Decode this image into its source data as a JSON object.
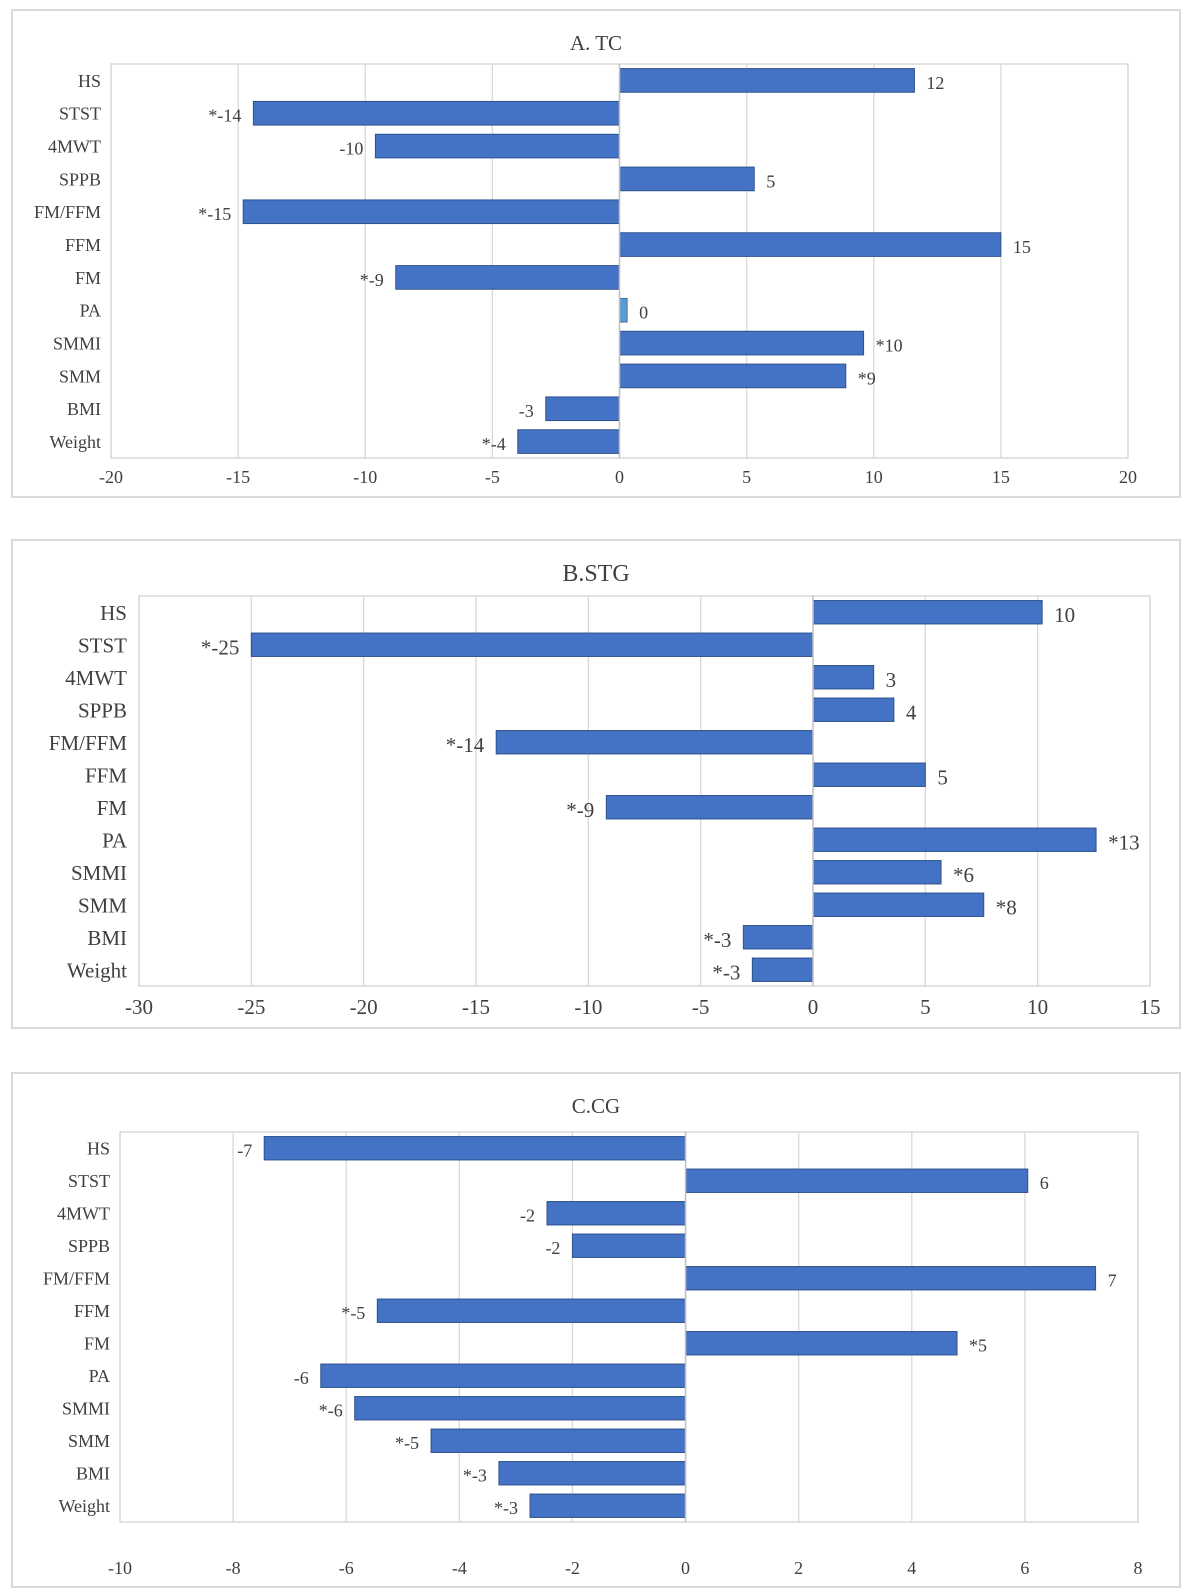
{
  "chart_data": [
    {
      "type": "bar",
      "orientation": "horizontal",
      "title": "A. TC",
      "categories": [
        "HS",
        "STST",
        "4MWT",
        "SPPB",
        "FM/FFM",
        "FFM",
        "FM",
        "PA",
        "SMMI",
        "SMM",
        "BMI",
        "Weight"
      ],
      "values": [
        11.6,
        -14.4,
        -9.6,
        5.3,
        -14.8,
        15.0,
        -8.8,
        0.3,
        9.6,
        8.9,
        -2.9,
        -4.0
      ],
      "data_labels": [
        "12",
        "*-14",
        "-10",
        "5",
        "*-15",
        "15",
        "*-9",
        "0",
        "*10",
        "*9",
        "-3",
        "*-4"
      ],
      "xlim": [
        -20,
        20
      ],
      "xticks": [
        "-20",
        "-15",
        "-10",
        "-5",
        "0",
        "5",
        "10",
        "15",
        "20"
      ],
      "grid": "vertical",
      "color": "#4472c4",
      "highlight_color": "#5b9bd5"
    },
    {
      "type": "bar",
      "orientation": "horizontal",
      "title": "B.STG",
      "categories": [
        "HS",
        "STST",
        "4MWT",
        "SPPB",
        "FM/FFM",
        "FFM",
        "FM",
        "PA",
        "SMMI",
        "SMM",
        "BMI",
        "Weight"
      ],
      "values": [
        10.2,
        -25.0,
        2.7,
        3.6,
        -14.1,
        5.0,
        -9.2,
        12.6,
        5.7,
        7.6,
        -3.1,
        -2.7
      ],
      "data_labels": [
        "10",
        "*-25",
        "3",
        "4",
        "*-14",
        "5",
        "*-9",
        "*13",
        "*6",
        "*8",
        "*-3",
        "*-3"
      ],
      "xlim": [
        -30,
        15
      ],
      "xticks": [
        "-30",
        "-25",
        "-20",
        "-15",
        "-10",
        "-5",
        "0",
        "5",
        "10",
        "15"
      ],
      "grid": "vertical",
      "color": "#4472c4"
    },
    {
      "type": "bar",
      "orientation": "horizontal",
      "title": "C.CG",
      "categories": [
        "HS",
        "STST",
        "4MWT",
        "SPPB",
        "FM/FFM",
        "FFM",
        "FM",
        "PA",
        "SMMI",
        "SMM",
        "BMI",
        "Weight"
      ],
      "values": [
        -7.45,
        6.05,
        -2.45,
        -2.0,
        7.25,
        -5.45,
        4.8,
        -6.45,
        -5.85,
        -4.5,
        -3.3,
        -2.75
      ],
      "data_labels": [
        "-7",
        "6",
        "-2",
        "-2",
        "7",
        "*-5",
        "*5",
        "-6",
        "*-6",
        "*-5",
        "*-3",
        "*-3"
      ],
      "xlim": [
        -10,
        8
      ],
      "xticks": [
        "-10",
        "-8",
        "-6",
        "-4",
        "-2",
        "0",
        "2",
        "4",
        "6",
        "8"
      ],
      "grid": "vertical",
      "color": "#4472c4"
    }
  ]
}
